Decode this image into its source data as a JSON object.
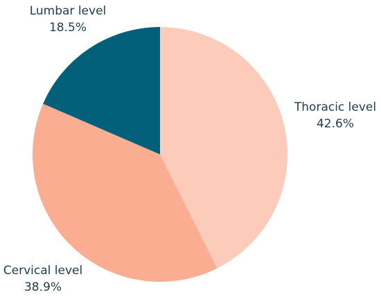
{
  "chart_data": {
    "type": "pie",
    "title": "",
    "start_angle_deg": 0,
    "direction": "clockwise",
    "slices": [
      {
        "label": "Thoracic level",
        "value": 42.6,
        "value_label": "42.6%",
        "color": "#fccbb9"
      },
      {
        "label": "Cervical level",
        "value": 38.9,
        "value_label": "38.9%",
        "color": "#fbad92"
      },
      {
        "label": "Lumbar level",
        "value": 18.5,
        "value_label": "18.5%",
        "color": "#02607a"
      }
    ],
    "legend": "none",
    "label_color": "#1f3b4d"
  }
}
